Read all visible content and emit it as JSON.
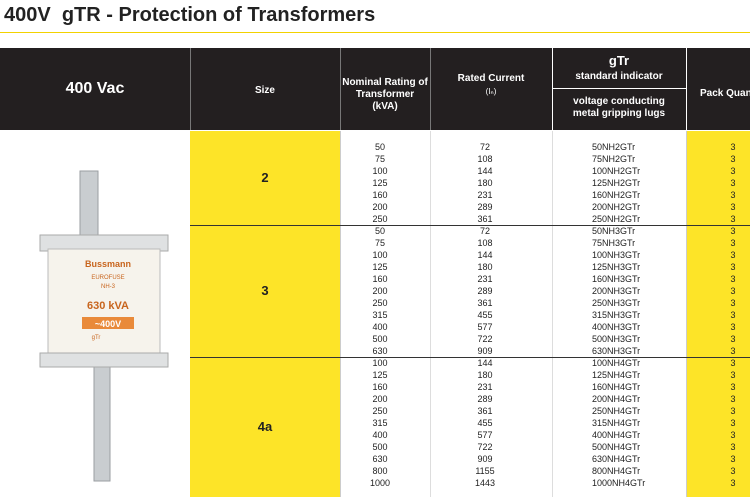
{
  "header": {
    "title": "400V  gTR - Protection of Transformers"
  },
  "table": {
    "columns": {
      "voltage": "400 Vac",
      "size": "Size",
      "rating": "Nominal Rating of Transformer (kVA)",
      "current": "Rated Current",
      "current_unit": "(Iₙ)",
      "indicator": "gTr",
      "indicator_sub": "standard indicator",
      "lugs": "voltage conducting metal gripping lugs",
      "pack": "Pack Quantity"
    },
    "image_labels": [
      "Bussmann",
      "EUROFUSE",
      "NH-3",
      "630 kVA",
      "~400V",
      "gTr"
    ],
    "groups": [
      {
        "size": "2",
        "rows": [
          [
            50,
            72,
            "50NH2GTr",
            3
          ],
          [
            75,
            108,
            "75NH2GTr",
            3
          ],
          [
            100,
            144,
            "100NH2GTr",
            3
          ],
          [
            125,
            180,
            "125NH2GTr",
            3
          ],
          [
            160,
            231,
            "160NH2GTr",
            3
          ],
          [
            200,
            289,
            "200NH2GTr",
            3
          ],
          [
            250,
            361,
            "250NH2GTr",
            3
          ]
        ]
      },
      {
        "size": "3",
        "rows": [
          [
            50,
            72,
            "50NH3GTr",
            3
          ],
          [
            75,
            108,
            "75NH3GTr",
            3
          ],
          [
            100,
            144,
            "100NH3GTr",
            3
          ],
          [
            125,
            180,
            "125NH3GTr",
            3
          ],
          [
            160,
            231,
            "160NH3GTr",
            3
          ],
          [
            200,
            289,
            "200NH3GTr",
            3
          ],
          [
            250,
            361,
            "250NH3GTr",
            3
          ],
          [
            315,
            455,
            "315NH3GTr",
            3
          ],
          [
            400,
            577,
            "400NH3GTr",
            3
          ],
          [
            500,
            722,
            "500NH3GTr",
            3
          ],
          [
            630,
            909,
            "630NH3GTr",
            3
          ]
        ]
      },
      {
        "size": "4a",
        "rows": [
          [
            100,
            144,
            "100NH4GTr",
            3
          ],
          [
            125,
            180,
            "125NH4GTr",
            3
          ],
          [
            160,
            231,
            "160NH4GTr",
            3
          ],
          [
            200,
            289,
            "200NH4GTr",
            3
          ],
          [
            250,
            361,
            "250NH4GTr",
            3
          ],
          [
            315,
            455,
            "315NH4GTr",
            3
          ],
          [
            400,
            577,
            "400NH4GTr",
            3
          ],
          [
            500,
            722,
            "500NH4GTr",
            3
          ],
          [
            630,
            909,
            "630NH4GTr",
            3
          ],
          [
            800,
            1155,
            "800NH4GTr",
            3
          ],
          [
            1000,
            1443,
            "1000NH4GTr",
            3
          ]
        ]
      }
    ]
  }
}
